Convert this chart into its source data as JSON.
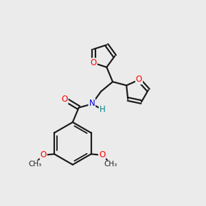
{
  "bg_color": "#ebebeb",
  "bond_color": "#1a1a1a",
  "bond_width": 1.6,
  "O_color": "#ff0000",
  "N_color": "#0000cd",
  "H_color": "#008080",
  "font_size": 8.5,
  "fig_width": 3.0,
  "fig_height": 3.0,
  "xlim": [
    0,
    10
  ],
  "ylim": [
    0,
    10
  ]
}
